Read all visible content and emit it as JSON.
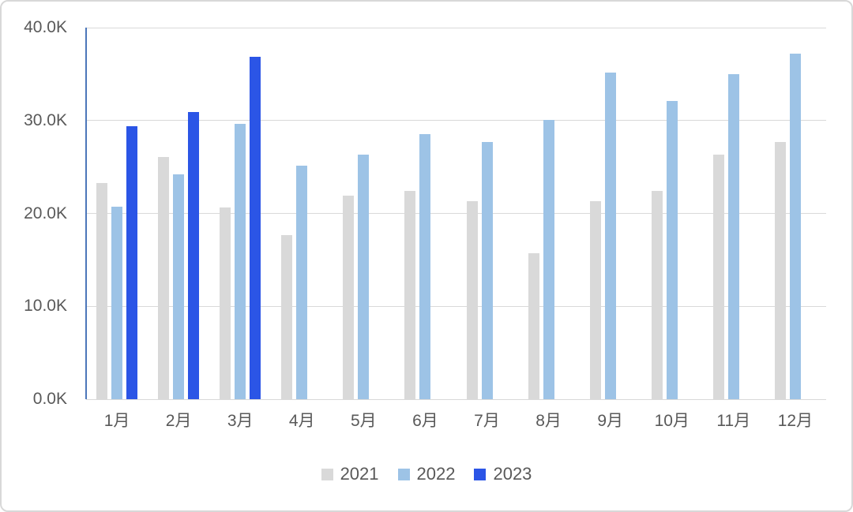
{
  "chart_data": {
    "type": "bar",
    "title": "",
    "categories": [
      "1月",
      "2月",
      "3月",
      "4月",
      "5月",
      "6月",
      "7月",
      "8月",
      "9月",
      "10月",
      "11月",
      "12月"
    ],
    "series": [
      {
        "name": "2021",
        "color": "#D9D9D9",
        "values": [
          23.3,
          26.1,
          20.6,
          17.7,
          21.9,
          22.4,
          21.3,
          15.7,
          21.3,
          22.4,
          26.3,
          27.7
        ]
      },
      {
        "name": "2022",
        "color": "#9DC3E6",
        "values": [
          20.7,
          24.2,
          29.6,
          25.1,
          26.3,
          28.5,
          27.7,
          30.1,
          35.2,
          32.1,
          35.0,
          37.2
        ]
      },
      {
        "name": "2023",
        "color": "#2B55E6",
        "values": [
          29.4,
          30.9,
          36.9,
          null,
          null,
          null,
          null,
          null,
          null,
          null,
          null,
          null
        ]
      }
    ],
    "value_unit": "K",
    "ylim": [
      0,
      40
    ],
    "yticks": [
      {
        "value": 0,
        "label": "0.0K"
      },
      {
        "value": 10,
        "label": "10.0K"
      },
      {
        "value": 20,
        "label": "20.0K"
      },
      {
        "value": 30,
        "label": "30.0K"
      },
      {
        "value": 40,
        "label": "40.0K"
      }
    ],
    "grid": true,
    "legend_position": "bottom"
  },
  "colors": {
    "background": "#FFFFFF",
    "frame_border": "#D8D8D8",
    "gridline": "#D9D9D9",
    "y_axis_line": "#4C77BA",
    "axis_text": "#595959"
  }
}
